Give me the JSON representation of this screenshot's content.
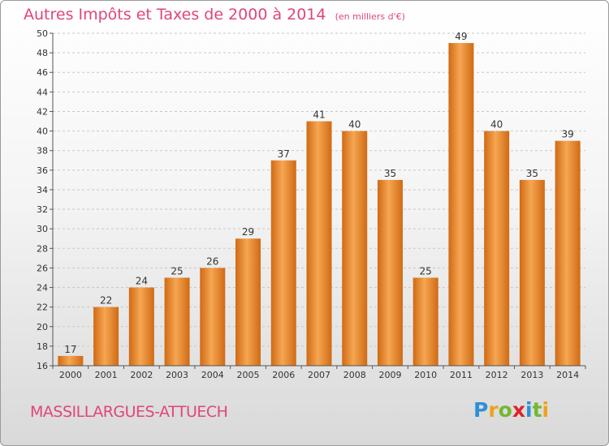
{
  "title": "Autres Impôts et Taxes de 2000 à 2014",
  "title_unit": "(en milliers d'€)",
  "commune": "MASSILLARGUES-ATTUECH",
  "brand": {
    "letters": [
      "P",
      "r",
      "o",
      "x",
      "i",
      "t",
      "i"
    ],
    "colors": [
      "#2e8fd6",
      "#f0a11c",
      "#73b832",
      "#e0242a",
      "#2e8fd6",
      "#73b832",
      "#f0a11c"
    ]
  },
  "colors": {
    "bar_light": "#f6a652",
    "bar_dark": "#d06a14",
    "title": "#e0457b"
  },
  "chart_data": {
    "type": "bar",
    "title": "Autres Impôts et Taxes de 2000 à 2014",
    "categories": [
      "2000",
      "2001",
      "2002",
      "2003",
      "2004",
      "2005",
      "2006",
      "2007",
      "2008",
      "2009",
      "2010",
      "2011",
      "2012",
      "2013",
      "2014"
    ],
    "values": [
      17,
      22,
      24,
      25,
      26,
      29,
      37,
      41,
      40,
      35,
      25,
      49,
      40,
      35,
      39
    ],
    "ylim": [
      16,
      50
    ],
    "yticks": [
      16,
      18,
      20,
      22,
      24,
      26,
      28,
      30,
      32,
      34,
      36,
      38,
      40,
      42,
      44,
      46,
      48,
      50
    ],
    "grid": true,
    "data_labels": true
  }
}
